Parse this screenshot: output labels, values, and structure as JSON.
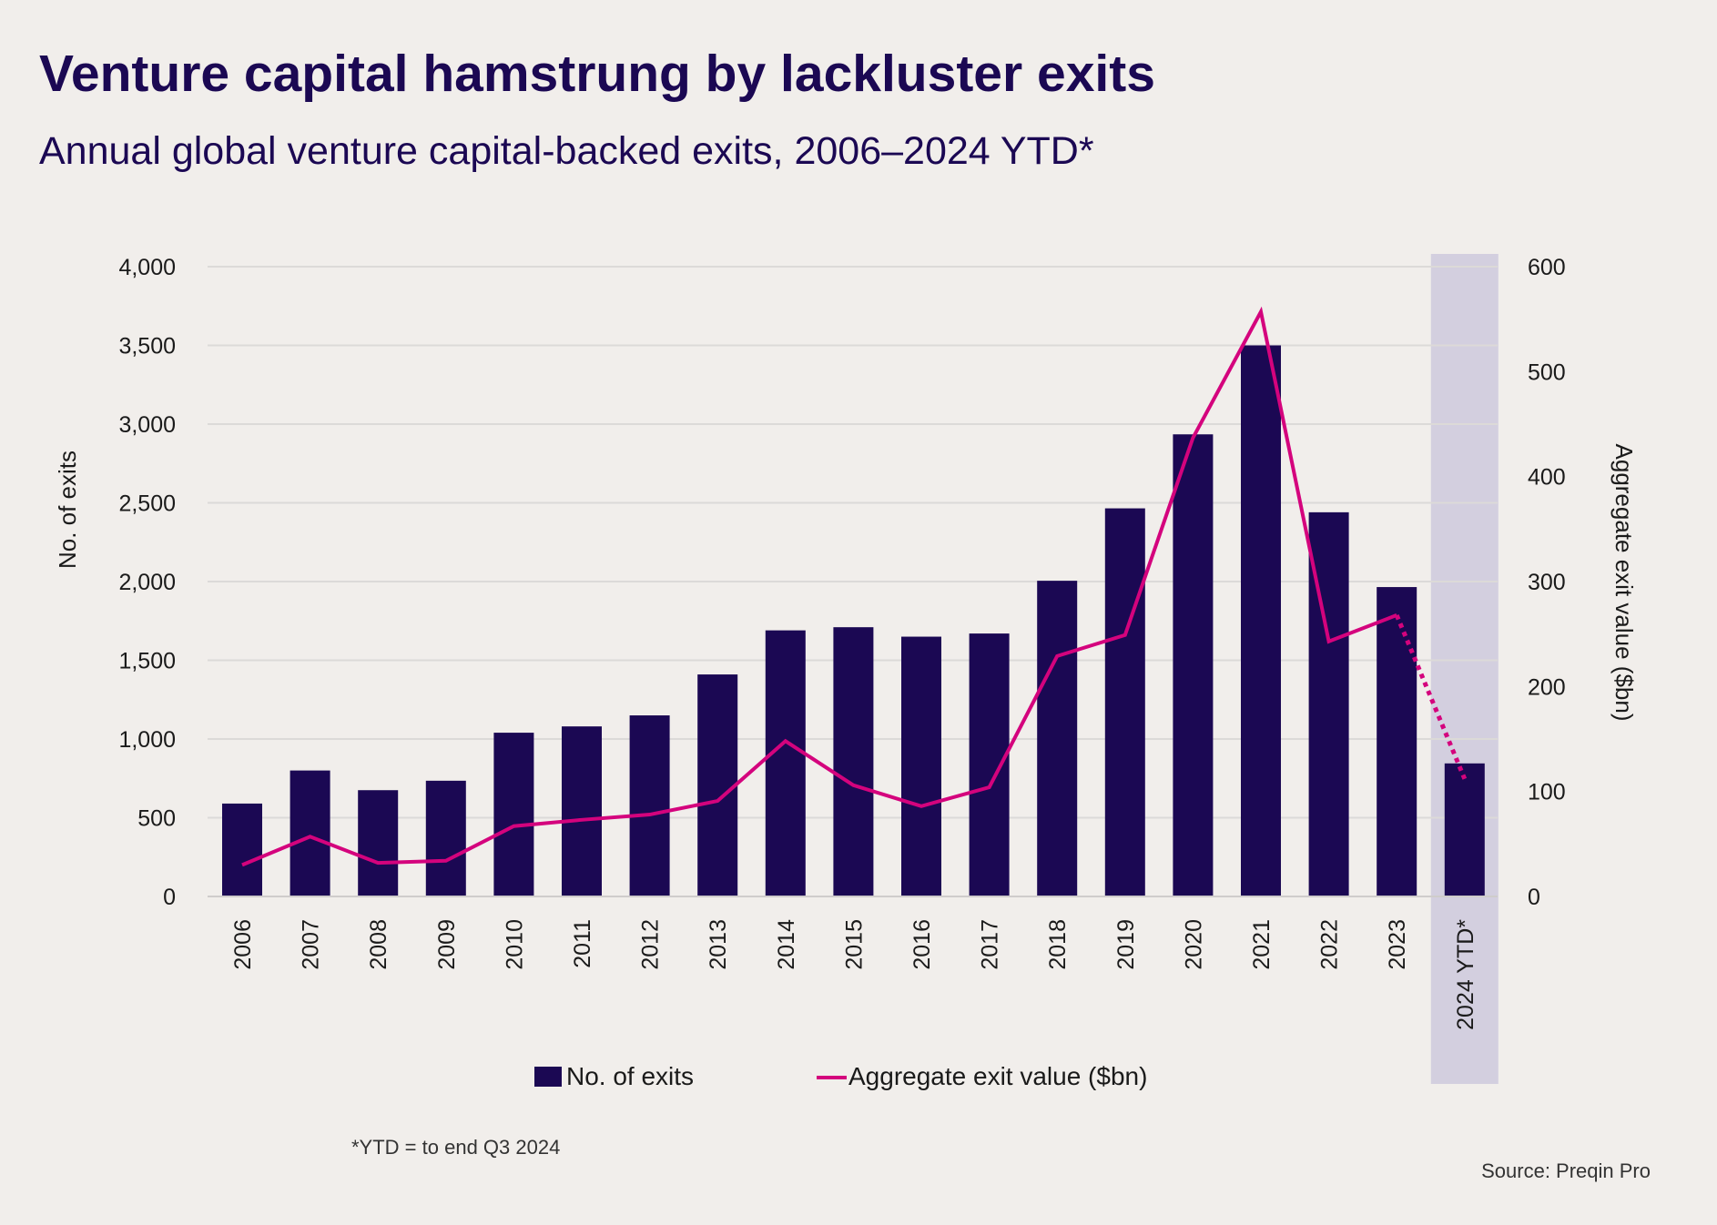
{
  "title": "Venture capital hamstrung by lackluster exits",
  "subtitle": "Annual global venture capital-backed exits, 2006–2024 YTD*",
  "footnote": "*YTD = to end Q3 2024",
  "source": "Source: Preqin Pro",
  "colors": {
    "background": "#f1eeeb",
    "bars": "#1b0853",
    "line": "#d4037d",
    "highlight": "#d3cfdf",
    "grid": "#dcdad8",
    "title": "#1b0853"
  },
  "chart_data": {
    "type": "bar",
    "title": "Annual global venture capital-backed exits, 2006–2024 YTD*",
    "categories": [
      "2006",
      "2007",
      "2008",
      "2009",
      "2010",
      "2011",
      "2012",
      "2013",
      "2014",
      "2015",
      "2016",
      "2017",
      "2018",
      "2019",
      "2020",
      "2021",
      "2022",
      "2023",
      "2024 YTD*"
    ],
    "highlighted_category": "2024 YTD*",
    "series": [
      {
        "name": "No. of exits",
        "type": "bar",
        "axis": "left",
        "values": [
          590,
          800,
          675,
          735,
          1040,
          1080,
          1150,
          1410,
          1690,
          1710,
          1650,
          1670,
          2005,
          2465,
          2935,
          3500,
          2440,
          1965,
          845
        ]
      },
      {
        "name": "Aggregate exit value ($bn)",
        "type": "line",
        "axis": "right",
        "dashed_last_segment": true,
        "values": [
          30,
          57,
          32,
          34,
          67,
          73,
          78,
          91,
          148,
          106,
          86,
          104,
          229,
          249,
          437,
          557,
          243,
          268,
          112
        ]
      }
    ],
    "ylabel": "No. of exits",
    "ylim": [
      0,
      4000
    ],
    "yticks": [
      "0",
      "500",
      "1,000",
      "1,500",
      "2,000",
      "2,500",
      "3,000",
      "3,500",
      "4,000"
    ],
    "y2label": "Aggregate exit value ($bn)",
    "y2lim": [
      0,
      600
    ],
    "y2ticks": [
      "0",
      "100",
      "200",
      "300",
      "400",
      "500",
      "600"
    ],
    "grid": true,
    "legend": "bottom-center"
  }
}
